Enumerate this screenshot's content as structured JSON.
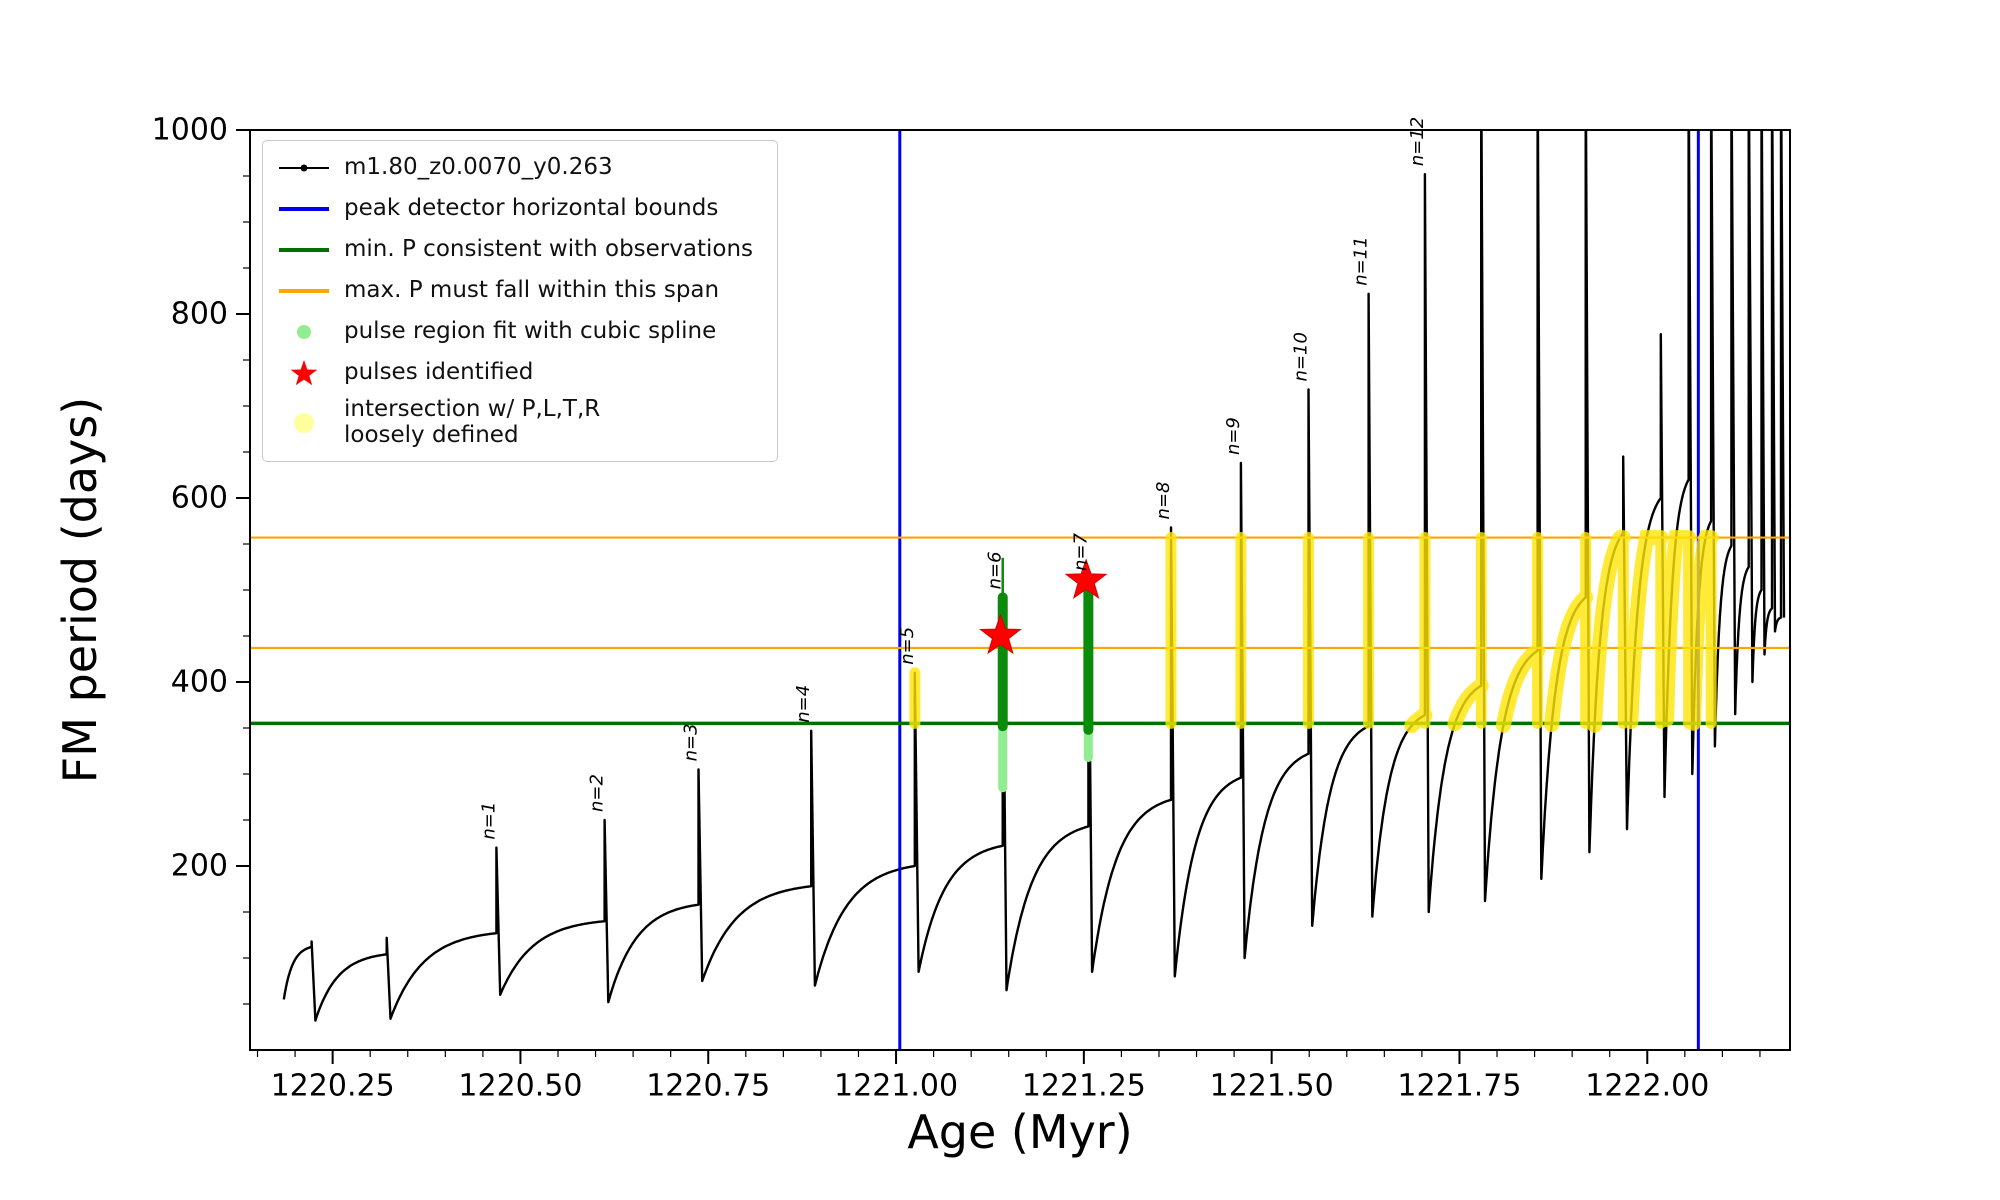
{
  "legend": {
    "entries": [
      {
        "label": "m1.80_z0.0070_y0.263",
        "marker": "line-dot",
        "color": "#000000",
        "icon": "series-line-icon"
      },
      {
        "label": "peak detector horizontal bounds",
        "marker": "line",
        "color": "#0000ee",
        "icon": "bound-line-icon"
      },
      {
        "label": "min. P consistent with observations",
        "marker": "line",
        "color": "#007000",
        "icon": "min-line-icon"
      },
      {
        "label": "max. P must fall within this span",
        "marker": "line",
        "color": "#ffa500",
        "icon": "max-line-icon"
      },
      {
        "label": "pulse region fit with cubic spline",
        "marker": "dot",
        "color": "#90ee90",
        "icon": "spline-dot-icon"
      },
      {
        "label": "pulses identified",
        "marker": "star",
        "color": "#ff0000",
        "icon": "pulse-star-icon"
      },
      {
        "label": "intersection w/ P,L,T,R\nloosely defined",
        "marker": "dot",
        "size": "large",
        "color": "#ffff9e",
        "icon": "intersection-dot-icon"
      }
    ]
  },
  "chart_data": {
    "type": "line",
    "title": "",
    "xlabel": "Age (Myr)",
    "ylabel": "FM period (days)",
    "xlim": [
      1220.14,
      1222.19
    ],
    "ylim": [
      0,
      1000
    ],
    "xticks": {
      "values": [
        1220.25,
        1220.5,
        1220.75,
        1221.0,
        1221.25,
        1221.5,
        1221.75,
        1222.0
      ],
      "labels": [
        "1220.25",
        "1220.50",
        "1220.75",
        "1221.00",
        "1221.25",
        "1221.50",
        "1221.75",
        "1222.00"
      ],
      "minor_step": 0.05
    },
    "yticks": {
      "values": [
        200,
        400,
        600,
        800,
        1000
      ],
      "labels": [
        "200",
        "400",
        "600",
        "800",
        "1000"
      ],
      "minor_step": 50
    },
    "series_name": "m1.80_z0.0070_y0.263",
    "colors": {
      "series": "#000000",
      "bounds": "#0000ee",
      "min_p": "#007000",
      "max_p": "#ffa500",
      "spline_light": "#90ee90",
      "spline_dark": "#0c8a0c",
      "pulse_star": "#ff0000",
      "intersection": "#ffe606"
    },
    "peak_detector_bounds_age": [
      1221.005,
      1222.068
    ],
    "min_period_line": 355,
    "max_period_span": [
      437,
      557
    ],
    "intersection_region": {
      "age_range": [
        1221.005,
        1222.09
      ],
      "period_range": [
        355,
        557
      ]
    },
    "pulses_labeled": [
      {
        "n": 1,
        "age": 1220.468,
        "peak_period": 220
      },
      {
        "n": 2,
        "age": 1220.612,
        "peak_period": 250
      },
      {
        "n": 3,
        "age": 1220.737,
        "peak_period": 305
      },
      {
        "n": 4,
        "age": 1220.887,
        "peak_period": 347
      },
      {
        "n": 5,
        "age": 1221.025,
        "peak_period": 410
      },
      {
        "n": 6,
        "age": 1221.142,
        "peak_period": 492
      },
      {
        "n": 7,
        "age": 1221.256,
        "peak_period": 512
      },
      {
        "n": 8,
        "age": 1221.366,
        "peak_period": 568
      },
      {
        "n": 9,
        "age": 1221.459,
        "peak_period": 638
      },
      {
        "n": 10,
        "age": 1221.549,
        "peak_period": 718
      },
      {
        "n": 11,
        "age": 1221.629,
        "peak_period": 822
      },
      {
        "n": 12,
        "age": 1221.704,
        "peak_period": 952
      }
    ],
    "pulses_identified": [
      {
        "age": 1221.139,
        "period": 450
      },
      {
        "age": 1221.253,
        "period": 510
      }
    ],
    "spline_regions": [
      {
        "age": 1221.142,
        "light": [
          285,
          358
        ],
        "dark": [
          352,
          492
        ],
        "stem": 535
      },
      {
        "age": 1221.256,
        "light": [
          318,
          352
        ],
        "dark": [
          348,
          512
        ],
        "stem": null
      }
    ],
    "cycles": [
      [
        1220.185,
        55,
        1220.222,
        112,
        118,
        null
      ],
      [
        1220.227,
        32,
        1220.322,
        104,
        122,
        null
      ],
      [
        1220.327,
        34,
        1220.468,
        127,
        220,
        "n=1"
      ],
      [
        1220.473,
        60,
        1220.612,
        140,
        250,
        "n=2"
      ],
      [
        1220.617,
        52,
        1220.737,
        158,
        305,
        "n=3"
      ],
      [
        1220.742,
        75,
        1220.887,
        178,
        347,
        "n=4"
      ],
      [
        1220.892,
        70,
        1221.025,
        200,
        410,
        "n=5"
      ],
      [
        1221.03,
        85,
        1221.142,
        222,
        492,
        "n=6"
      ],
      [
        1221.147,
        65,
        1221.256,
        243,
        512,
        "n=7"
      ],
      [
        1221.261,
        85,
        1221.366,
        272,
        568,
        "n=8"
      ],
      [
        1221.371,
        80,
        1221.459,
        296,
        638,
        "n=9"
      ],
      [
        1221.464,
        100,
        1221.549,
        322,
        718,
        "n=10"
      ],
      [
        1221.554,
        135,
        1221.629,
        352,
        822,
        "n=11"
      ],
      [
        1221.634,
        145,
        1221.704,
        364,
        952,
        "n=12"
      ],
      [
        1221.709,
        150,
        1221.779,
        396,
        1080,
        null
      ],
      [
        1221.784,
        162,
        1221.854,
        434,
        1080,
        null
      ],
      [
        1221.859,
        186,
        1221.918,
        492,
        1080,
        null
      ],
      [
        1221.923,
        215,
        1221.968,
        562,
        645,
        null
      ],
      [
        1221.973,
        240,
        1222.018,
        600,
        778,
        null
      ],
      [
        1222.023,
        275,
        1222.055,
        620,
        1080,
        null
      ],
      [
        1222.06,
        300,
        1222.085,
        575,
        1080,
        null
      ],
      [
        1222.09,
        330,
        1222.112,
        548,
        1080,
        null
      ],
      [
        1222.117,
        365,
        1222.135,
        525,
        1080,
        null
      ],
      [
        1222.14,
        400,
        1222.152,
        500,
        1080,
        null
      ],
      [
        1222.156,
        430,
        1222.166,
        480,
        1080,
        null
      ],
      [
        1222.17,
        455,
        1222.178,
        470,
        1080,
        null
      ]
    ]
  }
}
